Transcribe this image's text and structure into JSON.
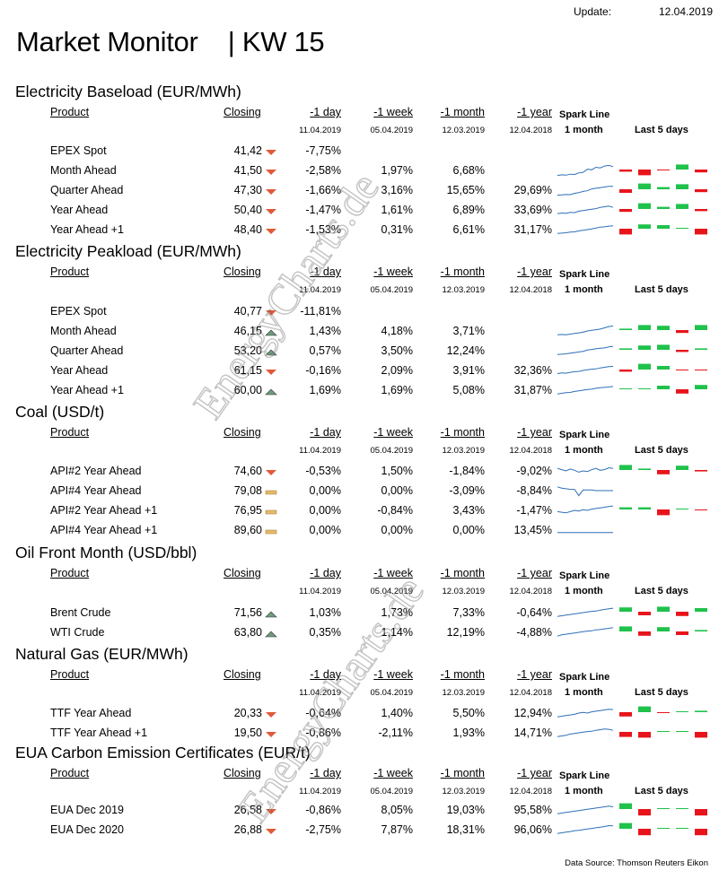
{
  "header": {
    "update_label": "Update:",
    "update_date": "12.04.2019",
    "title": "Market Monitor    | KW 15"
  },
  "columns": {
    "product": "Product",
    "closing": "Closing",
    "d1": "-1 day",
    "w1": "-1 week",
    "m1": "-1 month",
    "y1": "-1 year",
    "spark1": "Spark Line",
    "spark2": "1 month",
    "last5": "Last 5  days"
  },
  "watermark": "EnergyCharts.de",
  "colors": {
    "up": "#1fc24b",
    "down": "#e8141b",
    "tri_down": "#e05a3a",
    "tri_up": "#6e9c7c",
    "flat": "#e6b96a",
    "spark": "#2e6fb7"
  },
  "sections": [
    {
      "title": "Electricity Baseload (EUR/MWh)",
      "dates": [
        "11.04.2019",
        "05.04.2019",
        "12.03.2019",
        "12.04.2018"
      ],
      "rows": [
        {
          "product": "EPEX Spot",
          "closing": "41,42",
          "trend": "down",
          "d1": "-7,75%",
          "w1": "",
          "m1": "",
          "y1": "",
          "spark": [],
          "bars": []
        },
        {
          "product": "Month Ahead",
          "closing": "41,50",
          "trend": "down",
          "d1": "-2,58%",
          "w1": "1,97%",
          "m1": "6,68%",
          "y1": "",
          "spark": [
            0.1,
            0.15,
            0.12,
            0.2,
            0.18,
            0.3,
            0.35,
            0.6,
            0.55,
            0.75,
            0.7,
            0.85,
            0.9,
            0.8
          ],
          "bars": [
            -0.3,
            -0.8,
            -0.1,
            0.7,
            -0.4
          ]
        },
        {
          "product": "Quarter Ahead",
          "closing": "47,30",
          "trend": "down",
          "d1": "-1,66%",
          "w1": "3,16%",
          "m1": "15,65%",
          "y1": "29,69%",
          "spark": [
            0.1,
            0.12,
            0.15,
            0.14,
            0.25,
            0.3,
            0.4,
            0.45,
            0.6,
            0.65,
            0.7,
            0.75,
            0.8,
            0.8
          ],
          "bars": [
            -0.5,
            0.8,
            0.3,
            0.7,
            -0.4
          ]
        },
        {
          "product": "Year Ahead",
          "closing": "50,40",
          "trend": "down",
          "d1": "-1,47%",
          "w1": "1,61%",
          "m1": "6,89%",
          "y1": "33,69%",
          "spark": [
            0.2,
            0.25,
            0.22,
            0.3,
            0.28,
            0.4,
            0.45,
            0.5,
            0.55,
            0.6,
            0.7,
            0.75,
            0.8,
            0.7
          ],
          "bars": [
            -0.4,
            0.8,
            0.3,
            0.7,
            -0.3
          ]
        },
        {
          "product": "Year  Ahead +1",
          "closing": "48,40",
          "trend": "down",
          "d1": "-1,53%",
          "w1": "0,31%",
          "m1": "6,61%",
          "y1": "31,17%",
          "spark": [
            0.2,
            0.22,
            0.25,
            0.3,
            0.32,
            0.4,
            0.45,
            0.5,
            0.55,
            0.62,
            0.7,
            0.72,
            0.78,
            0.8
          ],
          "bars": [
            -0.8,
            0.6,
            0.5,
            0.0,
            -0.8
          ]
        }
      ]
    },
    {
      "title": "Electricity Peakload (EUR/MWh)",
      "dates": [
        "11.04.2019",
        "05.04.2019",
        "12.03.2019",
        "12.04.2018"
      ],
      "rows": [
        {
          "product": "EPEX Spot",
          "closing": "40,77",
          "trend": "down",
          "d1": "-11,81%",
          "w1": "",
          "m1": "",
          "y1": "",
          "spark": [],
          "bars": []
        },
        {
          "product": "Month Ahead",
          "closing": "46,15",
          "trend": "up",
          "d1": "1,43%",
          "w1": "4,18%",
          "m1": "3,71%",
          "y1": "",
          "spark": [
            0.2,
            0.22,
            0.2,
            0.25,
            0.3,
            0.35,
            0.4,
            0.5,
            0.55,
            0.6,
            0.65,
            0.75,
            0.85,
            0.9
          ],
          "bars": [
            0.2,
            0.7,
            0.6,
            -0.4,
            0.7
          ]
        },
        {
          "product": "Quarter Ahead",
          "closing": "53,20",
          "trend": "up",
          "d1": "0,57%",
          "w1": "3,50%",
          "m1": "12,24%",
          "y1": "",
          "spark": [
            0.2,
            0.22,
            0.25,
            0.3,
            0.35,
            0.4,
            0.45,
            0.55,
            0.6,
            0.65,
            0.7,
            0.72,
            0.8,
            0.85
          ],
          "bars": [
            0.2,
            0.6,
            0.7,
            -0.3,
            0.2
          ]
        },
        {
          "product": "Year Ahead",
          "closing": "61,15",
          "trend": "down",
          "d1": "-0,16%",
          "w1": "2,09%",
          "m1": "3,91%",
          "y1": "32,36%",
          "spark": [
            0.25,
            0.3,
            0.28,
            0.35,
            0.4,
            0.42,
            0.5,
            0.55,
            0.6,
            0.62,
            0.7,
            0.75,
            0.8,
            0.82
          ],
          "bars": [
            -0.3,
            0.8,
            0.5,
            -0.1,
            -0.1
          ]
        },
        {
          "product": "Year  Ahead +1",
          "closing": "60,00",
          "trend": "up",
          "d1": "1,69%",
          "w1": "1,69%",
          "m1": "5,08%",
          "y1": "31,87%",
          "spark": [
            0.2,
            0.25,
            0.3,
            0.32,
            0.4,
            0.45,
            0.5,
            0.55,
            0.58,
            0.65,
            0.7,
            0.72,
            0.75,
            0.8
          ],
          "bars": [
            0.1,
            0.1,
            0.5,
            -0.6,
            0.6
          ]
        }
      ]
    },
    {
      "title": "Coal (USD/t)",
      "dates": [
        "11.04.2019",
        "05.04.2019",
        "12.03.2019",
        "12.04.2018"
      ],
      "rows": [
        {
          "product": "API#2 Year Ahead",
          "closing": "74,60",
          "trend": "down",
          "d1": "-0,53%",
          "w1": "1,50%",
          "m1": "-1,84%",
          "y1": "-9,02%",
          "spark": [
            0.7,
            0.6,
            0.5,
            0.65,
            0.55,
            0.4,
            0.5,
            0.45,
            0.6,
            0.7,
            0.55,
            0.6,
            0.75,
            0.7
          ],
          "bars": [
            0.7,
            0.2,
            -0.6,
            0.6,
            -0.2
          ]
        },
        {
          "product": "API#4 Year Ahead",
          "closing": "79,08",
          "trend": "flat",
          "d1": "0,00%",
          "w1": "0,00%",
          "m1": "-3,09%",
          "y1": "-8,84%",
          "spark": [
            0.8,
            0.7,
            0.65,
            0.6,
            0.6,
            0.1,
            0.55,
            0.55,
            0.55,
            0.5,
            0.5,
            0.5,
            0.5,
            0.5
          ],
          "bars": []
        },
        {
          "product": "API#2 Year Ahead +1",
          "closing": "76,95",
          "trend": "flat",
          "d1": "0,00%",
          "w1": "-0,84%",
          "m1": "3,43%",
          "y1": "-1,47%",
          "spark": [
            0.4,
            0.35,
            0.3,
            0.4,
            0.5,
            0.45,
            0.55,
            0.5,
            0.6,
            0.65,
            0.7,
            0.75,
            0.8,
            0.85
          ],
          "bars": [
            0.3,
            0.3,
            -0.8,
            0.0,
            -0.1
          ]
        },
        {
          "product": "API#4 Year Ahead +1",
          "closing": "89,60",
          "trend": "flat",
          "d1": "0,00%",
          "w1": "0,00%",
          "m1": "0,00%",
          "y1": "13,45%",
          "spark": [
            0.3,
            0.3,
            0.3,
            0.3,
            0.3,
            0.3,
            0.3,
            0.3,
            0.3,
            0.3,
            0.3,
            0.3,
            0.3,
            0.3
          ],
          "bars": []
        }
      ]
    },
    {
      "title": "Oil Front Month (USD/bbl)",
      "dates": [
        "11.04.2019",
        "05.04.2019",
        "12.03.2019",
        "12.04.2018"
      ],
      "rows": [
        {
          "product": "Brent Crude",
          "closing": "71,56",
          "trend": "up",
          "d1": "1,03%",
          "w1": "1,73%",
          "m1": "7,33%",
          "y1": "-0,64%",
          "spark": [
            0.2,
            0.25,
            0.3,
            0.35,
            0.4,
            0.45,
            0.5,
            0.55,
            0.6,
            0.62,
            0.7,
            0.75,
            0.8,
            0.85
          ],
          "bars": [
            0.6,
            -0.5,
            0.7,
            -0.6,
            0.5
          ]
        },
        {
          "product": "WTI Crude",
          "closing": "63,80",
          "trend": "up",
          "d1": "0,35%",
          "w1": "1,14%",
          "m1": "12,19%",
          "y1": "-4,88%",
          "spark": [
            0.2,
            0.3,
            0.35,
            0.4,
            0.45,
            0.5,
            0.55,
            0.6,
            0.62,
            0.7,
            0.72,
            0.78,
            0.82,
            0.88
          ],
          "bars": [
            0.7,
            -0.6,
            0.6,
            -0.5,
            0.2
          ]
        }
      ]
    },
    {
      "title": "Natural Gas (EUR/MWh)",
      "dates": [
        "11.04.2019",
        "05.04.2019",
        "12.03.2019",
        "12.04.2018"
      ],
      "rows": [
        {
          "product": "TTF Year Ahead",
          "closing": "20,33",
          "trend": "down",
          "d1": "-0,64%",
          "w1": "1,40%",
          "m1": "5,50%",
          "y1": "12,94%",
          "spark": [
            0.2,
            0.25,
            0.3,
            0.35,
            0.4,
            0.5,
            0.55,
            0.5,
            0.6,
            0.65,
            0.7,
            0.75,
            0.8,
            0.78
          ],
          "bars": [
            -0.6,
            0.8,
            -0.1,
            0.1,
            0.2
          ]
        },
        {
          "product": "TTF Year Ahead +1",
          "closing": "19,50",
          "trend": "down",
          "d1": "-0,86%",
          "w1": "-2,11%",
          "m1": "1,93%",
          "y1": "14,71%",
          "spark": [
            0.2,
            0.25,
            0.3,
            0.4,
            0.45,
            0.5,
            0.55,
            0.6,
            0.62,
            0.7,
            0.75,
            0.8,
            0.78,
            0.7
          ],
          "bars": [
            -0.7,
            -0.8,
            0.1,
            0.1,
            -0.8
          ]
        }
      ]
    },
    {
      "title": "EUA Carbon Emission Certificates (EUR/t)",
      "dates": [
        "11.04.2019",
        "05.04.2019",
        "12.03.2019",
        "12.04.2018"
      ],
      "rows": [
        {
          "product": "EUA Dec 2019",
          "closing": "26,58",
          "trend": "down",
          "d1": "-0,86%",
          "w1": "8,05%",
          "m1": "19,03%",
          "y1": "95,58%",
          "spark": [
            0.2,
            0.25,
            0.3,
            0.35,
            0.4,
            0.45,
            0.5,
            0.55,
            0.6,
            0.65,
            0.7,
            0.75,
            0.8,
            0.75
          ],
          "bars": [
            0.8,
            -0.9,
            0.0,
            0.1,
            -0.9
          ]
        },
        {
          "product": "EUA Dec 2020",
          "closing": "26,88",
          "trend": "down",
          "d1": "-2,75%",
          "w1": "7,87%",
          "m1": "18,31%",
          "y1": "96,06%",
          "spark": [
            0.2,
            0.25,
            0.3,
            0.35,
            0.42,
            0.45,
            0.5,
            0.55,
            0.6,
            0.65,
            0.7,
            0.75,
            0.82,
            0.8
          ],
          "bars": [
            0.8,
            -0.9,
            0.0,
            0.1,
            -0.9
          ]
        }
      ]
    }
  ],
  "footer": {
    "source": "Data Source: Thomson Reuters Eikon"
  }
}
